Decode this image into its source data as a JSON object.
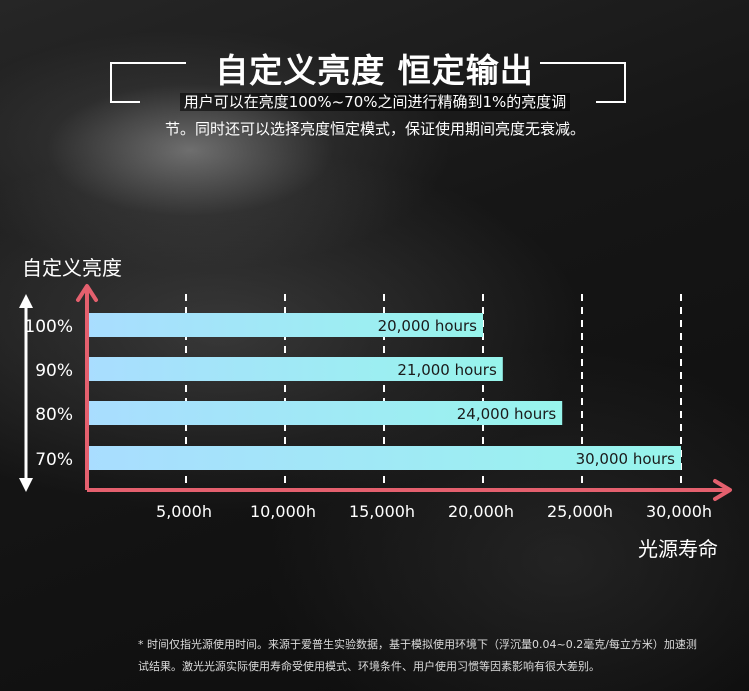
{
  "header": {
    "title": "自定义亮度 恒定输出",
    "desc_line1": "用户可以在亮度100%~70%之间进行精确到1%的亮度调",
    "desc_line2": "节。同时还可以选择亮度恒定模式，保证使用期间亮度无衰减。"
  },
  "colors": {
    "axis": "#e4606e",
    "bar_start": "#a9ddff",
    "bar_end": "#97f5ec",
    "bar_text": "#1b1b1b",
    "grid": "#ffffff"
  },
  "chart_data": {
    "type": "bar",
    "orientation": "horizontal",
    "ylabel": "自定义亮度",
    "xlabel": "光源寿命",
    "categories": [
      "100%",
      "90%",
      "80%",
      "70%"
    ],
    "values": [
      20000,
      21000,
      24000,
      30000
    ],
    "value_labels": [
      "20,000 hours",
      "21,000 hours",
      "24,000 hours",
      "30,000 hours"
    ],
    "x_ticks": [
      5000,
      10000,
      15000,
      20000,
      25000,
      30000
    ],
    "x_tick_labels": [
      "5,000h",
      "10,000h",
      "15,000h",
      "20,000h",
      "25,000h",
      "30,000h"
    ],
    "xlim": [
      0,
      30000
    ],
    "grid": "vertical dashed"
  },
  "footnote": {
    "line1": "* 时间仅指光源使用时间。来源于爱普生实验数据，基于模拟使用环境下（浮沉量0.04~0.2毫克/每立方米）加速测",
    "line2": "试结果。激光光源实际使用寿命受使用模式、环境条件、用户使用习惯等因素影响有很大差别。"
  }
}
